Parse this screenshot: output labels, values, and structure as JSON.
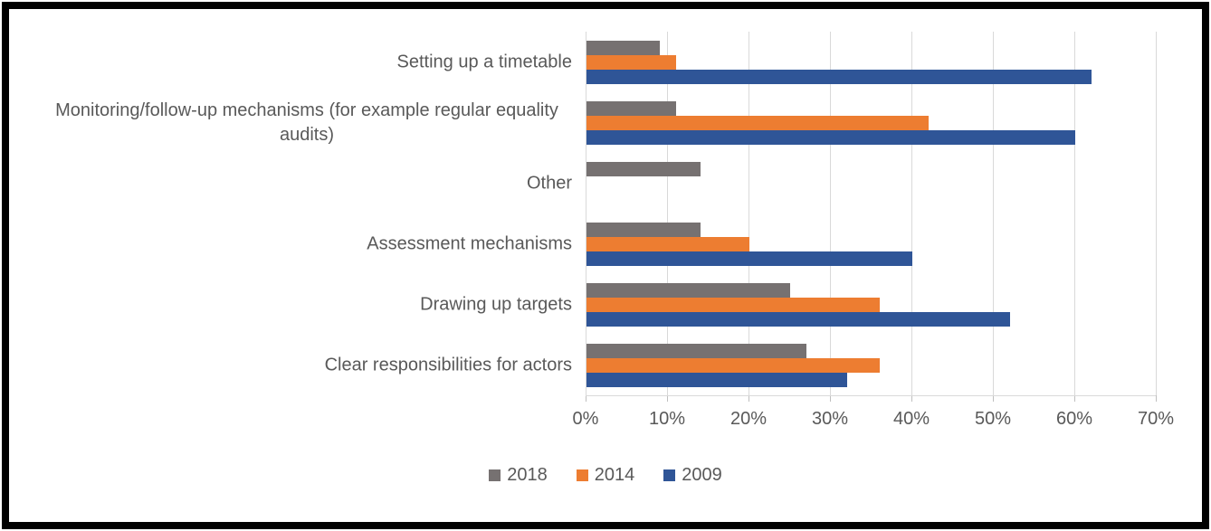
{
  "frame": {
    "background_color": "#ffffff",
    "border_color": "#000000"
  },
  "chart_data": {
    "type": "bar",
    "orientation": "horizontal",
    "title": "",
    "categories": [
      "Setting up a timetable",
      "Monitoring/follow-up mechanisms (for example regular equality audits)",
      "Other",
      "Assessment mechanisms",
      "Drawing up targets",
      "Clear responsibilities for actors"
    ],
    "series": [
      {
        "name": "2018",
        "color": "#767171",
        "values": [
          9,
          11,
          14,
          14,
          25,
          27
        ]
      },
      {
        "name": "2014",
        "color": "#ED7D31",
        "values": [
          11,
          42,
          0,
          20,
          36,
          36
        ]
      },
      {
        "name": "2009",
        "color": "#2F5597",
        "values": [
          62,
          60,
          0,
          40,
          52,
          32
        ]
      }
    ],
    "x_axis": {
      "min": 0,
      "max": 70,
      "unit": "%",
      "tick_step": 10,
      "tick_labels": [
        "0%",
        "10%",
        "20%",
        "30%",
        "40%",
        "50%",
        "60%",
        "70%"
      ]
    },
    "legend": {
      "position": "bottom",
      "entries": [
        "2018",
        "2014",
        "2009"
      ]
    },
    "grid": true,
    "colors": {
      "gridline": "#d9d9d9",
      "tick": "#bfbfbf",
      "text": "#595959"
    }
  }
}
